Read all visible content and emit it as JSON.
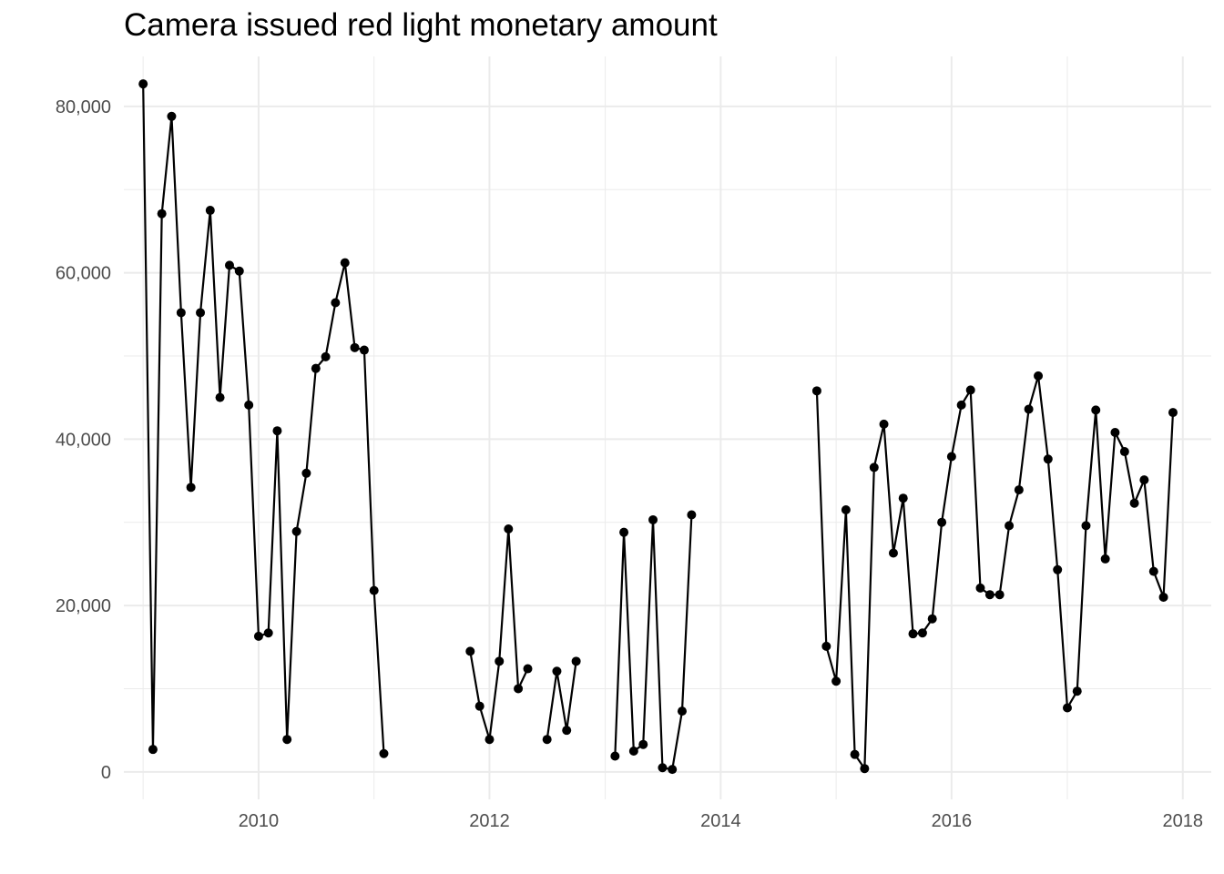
{
  "chart_data": {
    "type": "line",
    "title": "Camera issued red light monetary amount",
    "xlabel": "",
    "ylabel": "",
    "x_ticks": [
      "2010",
      "2012",
      "2014",
      "2016",
      "2018"
    ],
    "y_ticks": [
      "0",
      "20,000",
      "40,000",
      "60,000",
      "80,000"
    ],
    "xlim": [
      "2008-11-01",
      "2018-04-01"
    ],
    "ylim": [
      -3300,
      86000
    ],
    "grid": true,
    "legend": "none",
    "line_color": "#000000",
    "grid_color": "#ebebeb",
    "series": [
      {
        "segments": [
          {
            "x": [
              "2009-01",
              "2009-02",
              "2009-03",
              "2009-04",
              "2009-05",
              "2009-06",
              "2009-07",
              "2009-08",
              "2009-09",
              "2009-10",
              "2009-11",
              "2009-12",
              "2010-01",
              "2010-02",
              "2010-03",
              "2010-04",
              "2010-05",
              "2010-06",
              "2010-07",
              "2010-08",
              "2010-09",
              "2010-10",
              "2010-11",
              "2010-12",
              "2011-01",
              "2011-02"
            ],
            "y": [
              82700,
              2700,
              67100,
              78800,
              55200,
              34200,
              55200,
              67500,
              45000,
              60900,
              60200,
              44100,
              16300,
              16700,
              41000,
              3900,
              28900,
              35900,
              48500,
              49900,
              56400,
              61200,
              51000,
              50700,
              21800,
              2200
            ]
          },
          {
            "x": [
              "2011-11",
              "2011-12",
              "2012-01",
              "2012-02",
              "2012-03",
              "2012-04",
              "2012-05"
            ],
            "y": [
              14500,
              7900,
              3900,
              13300,
              29200,
              10000,
              12400
            ]
          },
          {
            "x": [
              "2012-07",
              "2012-08",
              "2012-09",
              "2012-10"
            ],
            "y": [
              3900,
              12100,
              5000,
              13300
            ]
          },
          {
            "x": [
              "2013-02",
              "2013-03",
              "2013-04",
              "2013-05",
              "2013-06",
              "2013-07",
              "2013-08",
              "2013-09",
              "2013-10"
            ],
            "y": [
              1900,
              28800,
              2500,
              3300,
              30300,
              500,
              300,
              7300,
              30900
            ]
          },
          {
            "x": [
              "2014-11",
              "2014-12",
              "2015-01",
              "2015-02",
              "2015-03",
              "2015-04",
              "2015-05",
              "2015-06",
              "2015-07",
              "2015-08",
              "2015-09",
              "2015-10",
              "2015-11",
              "2015-12",
              "2016-01",
              "2016-02",
              "2016-03",
              "2016-04",
              "2016-05",
              "2016-06",
              "2016-07",
              "2016-08",
              "2016-09",
              "2016-10",
              "2016-11",
              "2016-12",
              "2017-01",
              "2017-02",
              "2017-03",
              "2017-04",
              "2017-05",
              "2017-06",
              "2017-07",
              "2017-08",
              "2017-09",
              "2017-10",
              "2017-11",
              "2017-12"
            ],
            "y": [
              45800,
              15100,
              10900,
              31500,
              2100,
              400,
              36600,
              41800,
              26300,
              32900,
              16600,
              16700,
              18400,
              30000,
              37900,
              44100,
              45900,
              22100,
              21300,
              21300,
              29600,
              33900,
              43600,
              47600,
              37600,
              24300,
              7700,
              9700,
              29600,
              43500,
              25600,
              40800,
              38500,
              32300,
              35100,
              24100,
              21000,
              43200
            ]
          }
        ]
      }
    ]
  }
}
